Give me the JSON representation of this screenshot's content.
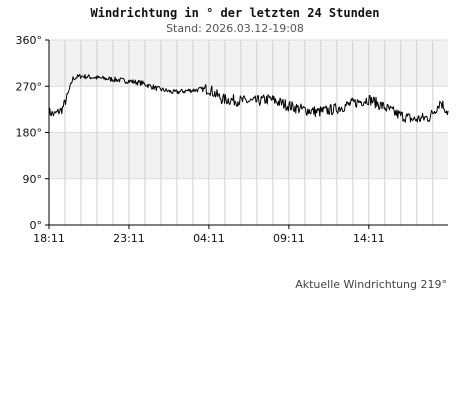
{
  "chart_data": {
    "type": "line",
    "title": "Windrichtung in ° der letzten 24 Stunden",
    "subtitle": "Stand: 2026.03.12-19:08",
    "ylim": [
      0,
      360
    ],
    "y_ticks": [
      {
        "value": 0,
        "label": "0°"
      },
      {
        "value": 90,
        "label": "90°"
      },
      {
        "value": 180,
        "label": "180°"
      },
      {
        "value": 270,
        "label": "270°"
      },
      {
        "value": 360,
        "label": "360°"
      }
    ],
    "xlim": [
      "2026-03-11 18:11",
      "2026-03-12 19:08"
    ],
    "x_ticks": [
      {
        "value": "2026-03-11 18:11",
        "label": "18:11"
      },
      {
        "value": "2026-03-11 23:11",
        "label": "23:11"
      },
      {
        "value": "2026-03-12 04:11",
        "label": "04:11"
      },
      {
        "value": "2026-03-12 09:11",
        "label": "09:11"
      },
      {
        "value": "2026-03-12 14:11",
        "label": "14:11"
      }
    ],
    "grid": true,
    "bands": "alternating light grey horizontal bands every 90°",
    "series": [
      {
        "color": "#000000",
        "points": [
          {
            "t": "2026-03-11 18:11",
            "v": 220
          },
          {
            "t": "2026-03-11 18:30",
            "v": 215
          },
          {
            "t": "2026-03-11 19:00",
            "v": 225
          },
          {
            "t": "2026-03-11 19:20",
            "v": 250
          },
          {
            "t": "2026-03-11 19:40",
            "v": 285
          },
          {
            "t": "2026-03-11 20:10",
            "v": 290
          },
          {
            "t": "2026-03-11 21:00",
            "v": 287
          },
          {
            "t": "2026-03-11 22:00",
            "v": 284
          },
          {
            "t": "2026-03-11 23:11",
            "v": 280
          },
          {
            "t": "2026-03-12 00:00",
            "v": 276
          },
          {
            "t": "2026-03-12 01:00",
            "v": 265
          },
          {
            "t": "2026-03-12 02:00",
            "v": 258
          },
          {
            "t": "2026-03-12 03:00",
            "v": 262
          },
          {
            "t": "2026-03-12 04:11",
            "v": 265
          },
          {
            "t": "2026-03-12 05:00",
            "v": 245
          },
          {
            "t": "2026-03-12 06:00",
            "v": 242
          },
          {
            "t": "2026-03-12 07:00",
            "v": 240
          },
          {
            "t": "2026-03-12 08:00",
            "v": 245
          },
          {
            "t": "2026-03-12 09:11",
            "v": 232
          },
          {
            "t": "2026-03-12 10:00",
            "v": 225
          },
          {
            "t": "2026-03-12 11:00",
            "v": 220
          },
          {
            "t": "2026-03-12 12:00",
            "v": 225
          },
          {
            "t": "2026-03-12 13:00",
            "v": 235
          },
          {
            "t": "2026-03-12 14:11",
            "v": 245
          },
          {
            "t": "2026-03-12 15:00",
            "v": 232
          },
          {
            "t": "2026-03-12 16:00",
            "v": 215
          },
          {
            "t": "2026-03-12 17:00",
            "v": 205
          },
          {
            "t": "2026-03-12 18:00",
            "v": 210
          },
          {
            "t": "2026-03-12 18:40",
            "v": 240
          },
          {
            "t": "2026-03-12 19:08",
            "v": 219
          }
        ]
      }
    ]
  },
  "footer": {
    "current_direction_text": "Aktuelle Windrichtung 219°"
  }
}
